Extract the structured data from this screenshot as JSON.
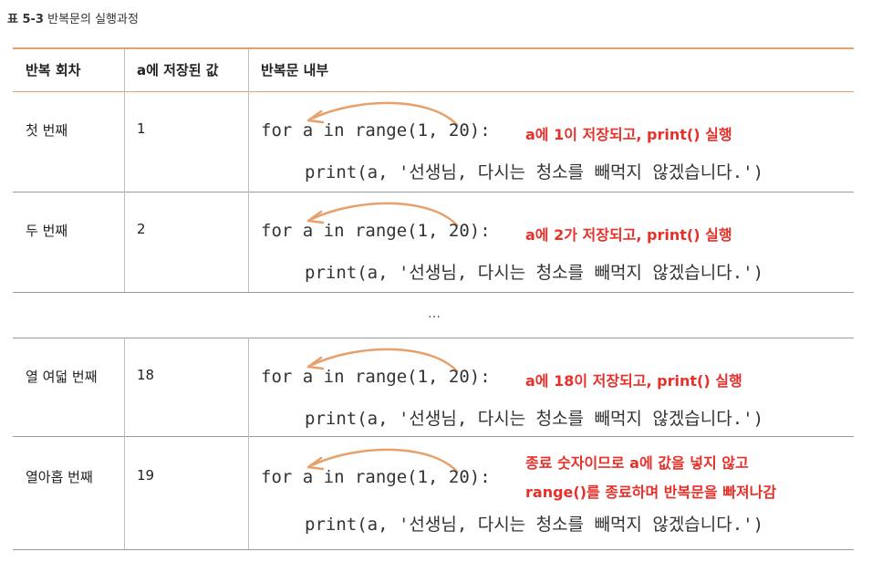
{
  "caption": {
    "label": "표 5-3",
    "text": "반복문의 실행과정"
  },
  "headers": [
    "반복 회차",
    "a에 저장된 값",
    "반복문 내부"
  ],
  "rows": [
    {
      "round": "첫 번째",
      "value": "1",
      "code_for": "for a in range(1, 20):",
      "note": "a에 1이 저장되고, print() 실행",
      "code_print": "print(a, '선생님, 다시는 청소를 빼먹지 않겠습니다.')"
    },
    {
      "round": "두 번째",
      "value": "2",
      "code_for": "for a in range(1, 20):",
      "note": "a에 2가 저장되고, print() 실행",
      "code_print": "print(a, '선생님, 다시는 청소를 빼먹지 않겠습니다.')"
    },
    {
      "round": "열 여덟 번째",
      "value": "18",
      "code_for": "for a in range(1, 20):",
      "note": "a에 18이 저장되고, print() 실행",
      "code_print": "print(a, '선생님, 다시는 청소를 빼먹지 않겠습니다.')"
    },
    {
      "round": "열아홉 번째",
      "value": "19",
      "code_for": "for a in range(1, 20):",
      "note_line1": "종료 숫자이므로 a에 값을 넣지 않고",
      "note_line2": "range()를 종료하며 반복문을 빠져나감",
      "code_print": "print(a, '선생님, 다시는 청소를 빼먹지 않겠습니다.')"
    }
  ],
  "ellipsis": "…",
  "colors": {
    "accent": "#e8a06a",
    "note": "#e8302a",
    "divider": "#bdbdbd"
  }
}
